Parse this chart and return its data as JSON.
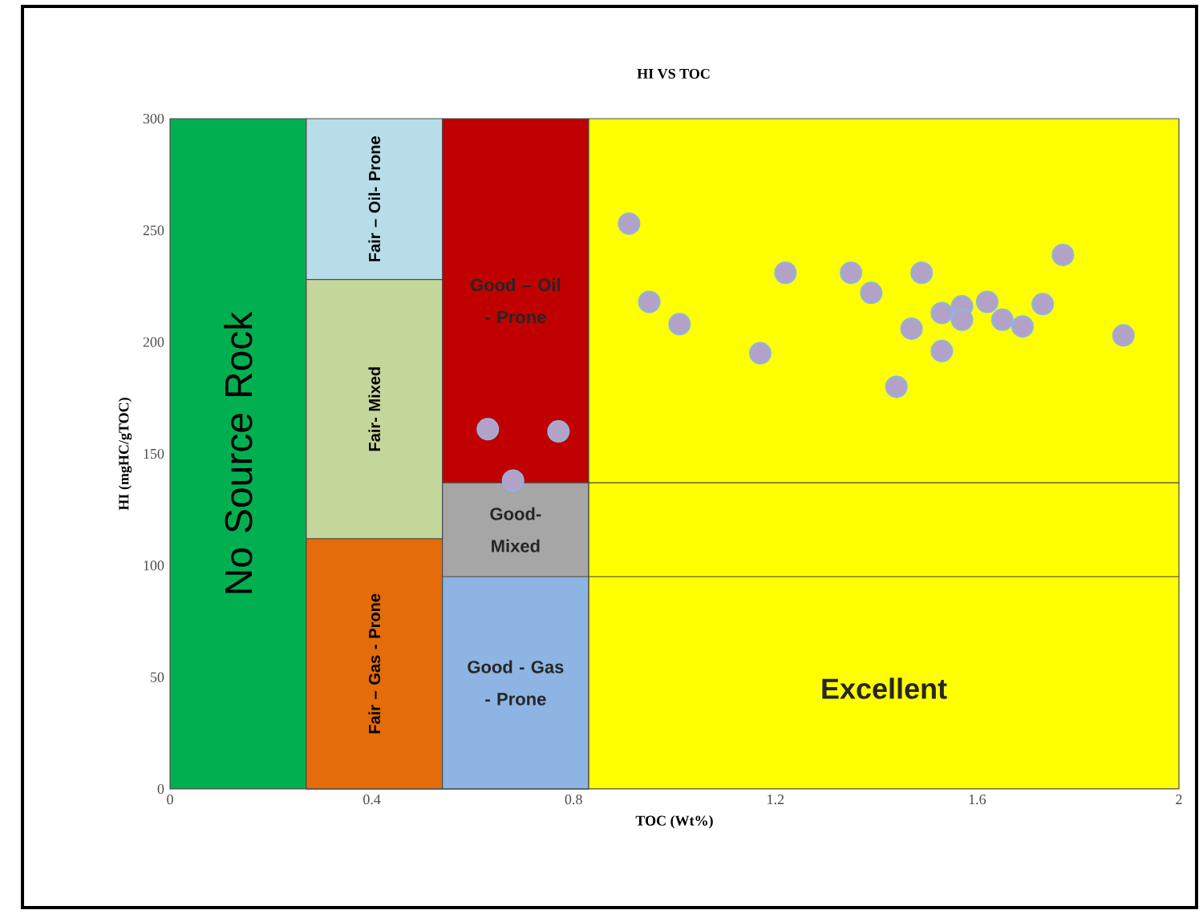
{
  "chart_data": {
    "type": "scatter",
    "title": "HI VS TOC",
    "xlabel": "TOC (Wt%)",
    "ylabel": "HI (mgHC/gTOC)",
    "xlim": [
      0,
      2
    ],
    "ylim": [
      0,
      300
    ],
    "xticks": [
      0,
      0.4,
      0.8,
      1.2,
      1.6,
      2
    ],
    "yticks": [
      0,
      50,
      100,
      150,
      200,
      250,
      300
    ],
    "series": [
      {
        "type": "area",
        "name": "No Source Rock",
        "color": "#00b050",
        "x": [
          0,
          0.27
        ],
        "values": [
          300,
          300
        ]
      },
      {
        "type": "area",
        "name": "Fair – Oil- Prone",
        "color": "#b7dde8",
        "x": [
          0.27,
          0.54
        ],
        "values": [
          300,
          300
        ]
      },
      {
        "type": "area",
        "name": "Fair- Mixed",
        "color": "#c4d79b",
        "x": [
          0.27,
          0.54
        ],
        "values": [
          228,
          228
        ]
      },
      {
        "type": "area",
        "name": "Fair – Gas - Prone",
        "color": "#e46c0a",
        "x": [
          0.27,
          0.54
        ],
        "values": [
          112,
          112
        ]
      },
      {
        "type": "area",
        "name": "Good – Oil - Prone",
        "color": "#c00000",
        "x": [
          0.54,
          0.83
        ],
        "values": [
          300,
          300
        ]
      },
      {
        "type": "area",
        "name": "Good- Mixed",
        "color": "#a6a6a6",
        "x": [
          0.54,
          0.83
        ],
        "values": [
          137,
          137
        ]
      },
      {
        "type": "area",
        "name": "Good - Gas - Prone",
        "color": "#8db4e2",
        "x": [
          0.54,
          0.83
        ],
        "values": [
          95,
          95
        ]
      },
      {
        "type": "area",
        "name": "Excellent",
        "color": "#ffff00",
        "x": [
          0.83,
          2
        ],
        "values": [
          300,
          300
        ]
      },
      {
        "type": "line",
        "color": "#404040",
        "x": [
          0.83,
          2
        ],
        "values": [
          137,
          137
        ]
      },
      {
        "type": "line",
        "color": "#404040",
        "x": [
          0.83,
          2
        ],
        "values": [
          95,
          95
        ]
      },
      {
        "color": "#b3a2c7",
        "marker": "circle",
        "x": [
          0.91,
          0.95,
          1.01,
          1.17,
          1.22,
          1.35,
          1.39,
          1.49,
          1.44,
          1.47,
          1.53,
          1.53,
          1.57,
          1.57,
          1.62,
          1.65,
          1.69,
          1.73,
          1.77,
          1.89,
          0.63,
          0.77,
          0.68
        ],
        "values": [
          253,
          218,
          208,
          195,
          231,
          231,
          222,
          231,
          180,
          206,
          213,
          196,
          216,
          210,
          218,
          210,
          207,
          217,
          239,
          203,
          161,
          160,
          138
        ]
      }
    ]
  }
}
